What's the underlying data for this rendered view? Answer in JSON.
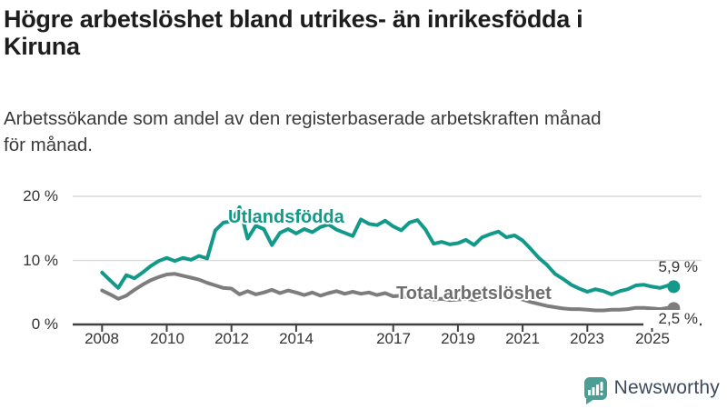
{
  "header": {
    "title_lines": [
      "Högre arbetslöshet bland utrikes- än inrikesfödda i",
      "Kiruna"
    ],
    "subtitle_lines": [
      "Arbetssökande som andel av den registerbaserade arbetskraften månad",
      "för månad."
    ]
  },
  "chart_data": {
    "type": "line",
    "title": "Högre arbetslöshet bland utrikes- än inrikesfödda i Kiruna",
    "subtitle": "Arbetssökande som andel av den registerbaserade arbetskraften månad för månad.",
    "xlabel": "",
    "ylabel": "",
    "ylim": [
      0,
      20
    ],
    "grid": "horizontal",
    "gridline_values": [
      20,
      10
    ],
    "y_ticks": [
      "20 %",
      "10 %",
      "0 %"
    ],
    "y_tick_values": [
      20,
      10,
      0
    ],
    "x_ticks": [
      2008,
      2010,
      2012,
      2014,
      2017,
      2019,
      2021,
      2023,
      2025
    ],
    "x_tick_labels": [
      "2008",
      "2010",
      "2012",
      "2014",
      "2017",
      "2019",
      "2021",
      "2023",
      "2025"
    ],
    "x": [
      2008,
      2008.25,
      2008.5,
      2008.75,
      2009,
      2009.25,
      2009.5,
      2009.75,
      2010,
      2010.25,
      2010.5,
      2010.75,
      2011,
      2011.25,
      2011.5,
      2011.75,
      2012,
      2012.25,
      2012.5,
      2012.75,
      2013,
      2013.25,
      2013.5,
      2013.75,
      2014,
      2014.25,
      2014.5,
      2014.75,
      2015,
      2015.25,
      2015.5,
      2015.75,
      2016,
      2016.25,
      2016.5,
      2016.75,
      2017,
      2017.25,
      2017.5,
      2017.75,
      2018,
      2018.25,
      2018.5,
      2018.75,
      2019,
      2019.25,
      2019.5,
      2019.75,
      2020,
      2020.25,
      2020.5,
      2020.75,
      2021,
      2021.25,
      2021.5,
      2021.75,
      2022,
      2022.25,
      2022.5,
      2022.75,
      2023,
      2023.25,
      2023.5,
      2023.75,
      2024,
      2024.25,
      2024.5,
      2024.75,
      2025,
      2025.25,
      2025.5,
      2025.67
    ],
    "series": [
      {
        "name": "Utlandsfödda",
        "color": "#12998a",
        "end_label": "5,9 %",
        "end_value": 5.9,
        "values": [
          8.1,
          6.9,
          5.7,
          7.7,
          7.2,
          8.1,
          9.1,
          9.9,
          10.4,
          9.9,
          10.4,
          10.1,
          10.7,
          10.3,
          14.7,
          15.9,
          16.1,
          18.3,
          13.4,
          15.4,
          14.9,
          12.4,
          14.3,
          14.9,
          14.2,
          14.9,
          14.4,
          15.2,
          15.6,
          14.8,
          14.3,
          13.8,
          16.4,
          15.7,
          15.5,
          16.2,
          15.3,
          14.7,
          15.9,
          16.3,
          14.8,
          12.6,
          12.9,
          12.5,
          12.7,
          13.2,
          12.4,
          13.6,
          14.1,
          14.5,
          13.6,
          13.9,
          13.1,
          11.8,
          10.4,
          9.3,
          7.9,
          7.1,
          6.2,
          5.6,
          5.1,
          5.5,
          5.2,
          4.7,
          5.2,
          5.5,
          6.1,
          6.2,
          5.9,
          5.7,
          6.1,
          5.9
        ]
      },
      {
        "name": "Total arbetslöshet",
        "color": "#7d7d7d",
        "end_label": "2,5 %",
        "end_value": 2.5,
        "values": [
          5.3,
          4.7,
          4.0,
          4.5,
          5.4,
          6.2,
          6.9,
          7.4,
          7.8,
          7.9,
          7.6,
          7.3,
          7.0,
          6.5,
          6.1,
          5.7,
          5.6,
          4.7,
          5.2,
          4.7,
          5.0,
          5.4,
          4.9,
          5.3,
          5.0,
          4.6,
          5.0,
          4.5,
          4.9,
          5.2,
          4.8,
          5.1,
          4.8,
          5.0,
          4.6,
          4.9,
          4.4,
          4.5,
          4.2,
          4.3,
          4.1,
          3.9,
          4.0,
          3.8,
          3.9,
          4.0,
          3.8,
          4.1,
          4.4,
          4.9,
          4.5,
          4.2,
          3.9,
          3.5,
          3.2,
          2.9,
          2.7,
          2.5,
          2.4,
          2.4,
          2.3,
          2.2,
          2.2,
          2.3,
          2.3,
          2.4,
          2.6,
          2.6,
          2.5,
          2.4,
          2.6,
          2.5
        ]
      }
    ]
  },
  "branding": {
    "logo_text": "Newsworthy",
    "logo_icon": "bar-chart-speech-bubble-icon",
    "logo_color": "#4a9e94",
    "logo_text_color": "#3d4a5c"
  },
  "colors": {
    "foreign_born_line": "#12998a",
    "total_line": "#7d7d7d",
    "gridline": "#d9d9d9",
    "axis": "#404040"
  }
}
